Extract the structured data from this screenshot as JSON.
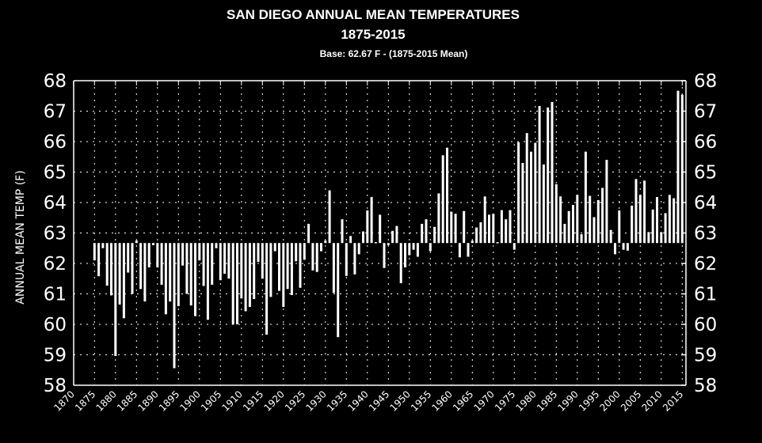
{
  "chart_data": {
    "type": "bar",
    "title": "SAN DIEGO ANNUAL MEAN TEMPERATURES",
    "subtitle": "1875-2015",
    "base_note": "Base: 62.67 F -  (1875-2015 Mean)",
    "base": 62.67,
    "xlabel": "",
    "ylabel": "ANNUAL MEAN TEMP (F)",
    "ylim": [
      58,
      68
    ],
    "xlim": [
      1870,
      2015
    ],
    "grid": true,
    "bar_color": "#ffffff",
    "background": "#000000",
    "y_ticks": [
      "58",
      "59",
      "60",
      "61",
      "62",
      "63",
      "64",
      "65",
      "66",
      "67",
      "68"
    ],
    "x_ticks": [
      "1870",
      "1875",
      "1880",
      "1885",
      "1890",
      "1895",
      "1900",
      "1905",
      "1910",
      "1915",
      "1920",
      "1925",
      "1930",
      "1935",
      "1940",
      "1945",
      "1950",
      "1955",
      "1960",
      "1965",
      "1970",
      "1975",
      "1980",
      "1985",
      "1990",
      "1995",
      "2000",
      "2005",
      "2010",
      "2015"
    ],
    "start_year": 1875,
    "values": [
      62.1,
      61.58,
      62.5,
      61.27,
      60.95,
      58.96,
      60.65,
      60.2,
      61.7,
      61.0,
      62.75,
      61.16,
      60.75,
      61.87,
      62.6,
      61.87,
      61.3,
      60.33,
      60.75,
      58.56,
      60.6,
      61.93,
      61.0,
      60.62,
      60.27,
      62.1,
      61.26,
      60.15,
      61.3,
      62.5,
      61.45,
      61.66,
      61.5,
      60.0,
      60.0,
      60.85,
      60.43,
      60.57,
      60.83,
      62.05,
      61.5,
      59.66,
      60.9,
      62.4,
      61.1,
      60.57,
      61.16,
      60.96,
      62.07,
      61.2,
      62.12,
      63.3,
      61.77,
      61.72,
      62.4,
      62.75,
      64.4,
      61.03,
      59.58,
      63.45,
      61.59,
      62.9,
      61.64,
      62.3,
      63.05,
      63.74,
      64.18,
      62.7,
      63.6,
      61.85,
      62.6,
      63.07,
      63.23,
      61.35,
      61.87,
      62.27,
      62.45,
      62.22,
      63.3,
      63.45,
      62.4,
      63.2,
      64.3,
      65.55,
      65.8,
      63.7,
      63.63,
      62.2,
      63.72,
      62.22,
      62.75,
      63.18,
      63.35,
      64.2,
      63.6,
      63.63,
      62.7,
      63.75,
      63.45,
      63.75,
      62.45,
      65.98,
      65.3,
      66.28,
      65.67,
      65.96,
      67.17,
      65.25,
      67.12,
      67.3,
      64.6,
      64.2,
      63.3,
      63.72,
      63.92,
      64.25,
      62.96,
      65.67,
      64.22,
      63.52,
      64.08,
      64.48,
      65.4,
      63.1,
      62.3,
      63.74,
      62.45,
      62.42,
      63.9,
      64.77,
      64.25,
      64.72,
      63.03,
      63.77,
      64.18,
      63.03,
      63.65,
      64.25,
      64.14,
      67.67,
      67.54
    ]
  }
}
